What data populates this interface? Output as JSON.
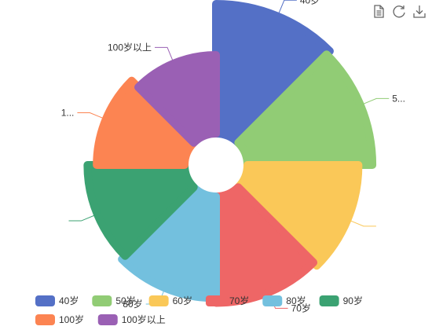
{
  "chart_data": {
    "type": "pie",
    "subtype": "rose-area",
    "categories": [
      "40岁",
      "50岁",
      "60岁",
      "70岁",
      "80岁",
      "90岁",
      "100岁",
      "100岁以上"
    ],
    "values": [
      40,
      38,
      32,
      30,
      28,
      26,
      22,
      18
    ],
    "colors": [
      "#5470c6",
      "#91cc75",
      "#fac858",
      "#ee6666",
      "#73c0de",
      "#3ba272",
      "#fc8452",
      "#9a60b4"
    ],
    "labels": [
      "40岁",
      "5...",
      "",
      "70岁",
      "80岁",
      "",
      "1...",
      "100岁以上"
    ],
    "legend": {
      "placement": "bottom",
      "items": [
        "40岁",
        "50岁",
        "60岁",
        "70岁",
        "80岁",
        "90岁",
        "100岁",
        "100岁以上"
      ]
    }
  },
  "toolbox": {
    "icons": [
      "data-view-icon",
      "restore-icon",
      "save-image-icon"
    ]
  }
}
